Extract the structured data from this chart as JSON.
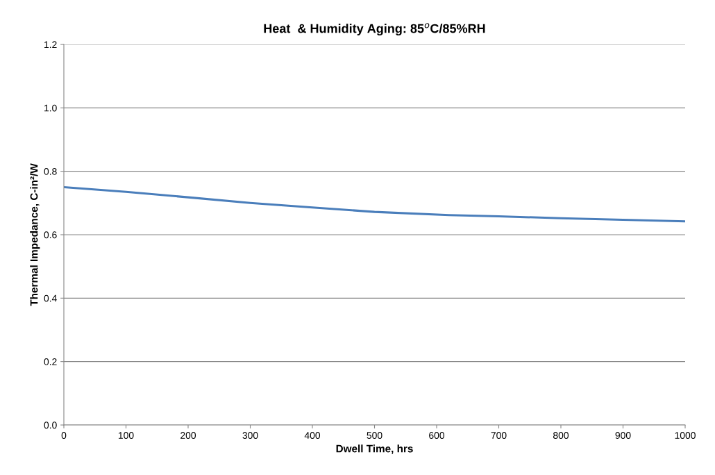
{
  "chart_data": {
    "type": "line",
    "title": "Heat  & Humidity Aging: 85$^{o}$C/85%RH",
    "xlabel": "Dwell Time, hrs",
    "ylabel": "Thermal Impedance, C-in²/W",
    "x": [
      0,
      100,
      200,
      300,
      400,
      500,
      620,
      700,
      800,
      900,
      1000
    ],
    "series": [
      {
        "color": "#4a7ebb",
        "values": [
          0.75,
          0.735,
          0.718,
          0.7,
          0.686,
          0.672,
          0.662,
          0.658,
          0.652,
          0.647,
          0.642
        ]
      }
    ],
    "xlim": [
      0,
      1000
    ],
    "xticks": [
      0,
      100,
      200,
      300,
      400,
      500,
      600,
      700,
      800,
      900,
      1000
    ],
    "ylim": [
      0.0,
      1.2
    ],
    "yticks": [
      {
        "value": 0.0,
        "label": "0.0"
      },
      {
        "value": 0.2,
        "label": "0.2"
      },
      {
        "value": 0.4,
        "label": "0.4"
      },
      {
        "value": 0.6,
        "label": "0.6"
      },
      {
        "value": 0.8,
        "label": "0.8"
      },
      {
        "value": 1.0,
        "label": "1.0"
      },
      {
        "value": 1.2,
        "label": "1.2"
      }
    ],
    "grid": "y",
    "marker": "none",
    "line_style": "solid"
  }
}
